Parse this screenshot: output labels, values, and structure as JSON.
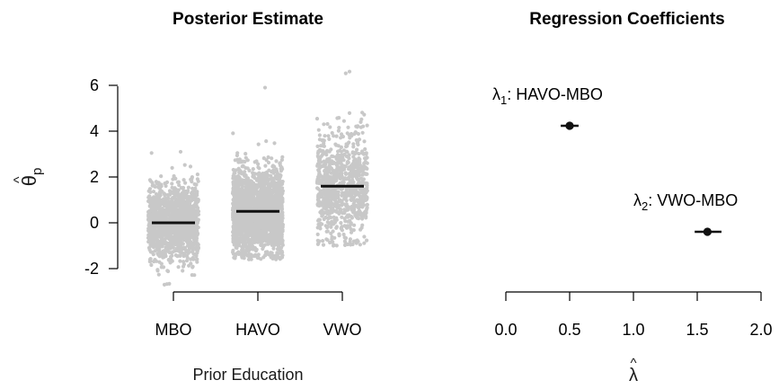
{
  "chart_data": [
    {
      "type": "scatter",
      "title": "Posterior Estimate",
      "xlabel": "Prior Education",
      "ylabel_symbol": "θ",
      "ylabel_subscript": "p",
      "categories": [
        "MBO",
        "HAVO",
        "VWO"
      ],
      "series": [
        {
          "category": "MBO",
          "mean": 0.0,
          "range": [
            -2.7,
            3.1
          ]
        },
        {
          "category": "HAVO",
          "mean": 0.5,
          "range": [
            -1.6,
            5.9
          ]
        },
        {
          "category": "VWO",
          "mean": 1.6,
          "range": [
            -1.0,
            6.6
          ]
        }
      ],
      "yticks": [
        "-2",
        "0",
        "2",
        "4",
        "6"
      ],
      "ylim": [
        -2,
        6
      ],
      "point_color": "#c8c8c8",
      "mean_line_color": "#111111"
    },
    {
      "type": "scatter",
      "title": "Regression Coefficients",
      "xlabel_symbol": "λ",
      "xticks": [
        "0.0",
        "0.5",
        "1.0",
        "1.5",
        "2.0"
      ],
      "xlim": [
        0,
        2
      ],
      "points": [
        {
          "label_symbol": "λ",
          "label_sub": "1",
          "label_text": ": HAVO-MBO",
          "x": 0.5,
          "ci": [
            0.43,
            0.57
          ]
        },
        {
          "label_symbol": "λ",
          "label_sub": "2",
          "label_text": ": VWO-MBO",
          "x": 1.58,
          "ci": [
            1.48,
            1.69
          ]
        }
      ],
      "point_color": "#111111"
    }
  ]
}
